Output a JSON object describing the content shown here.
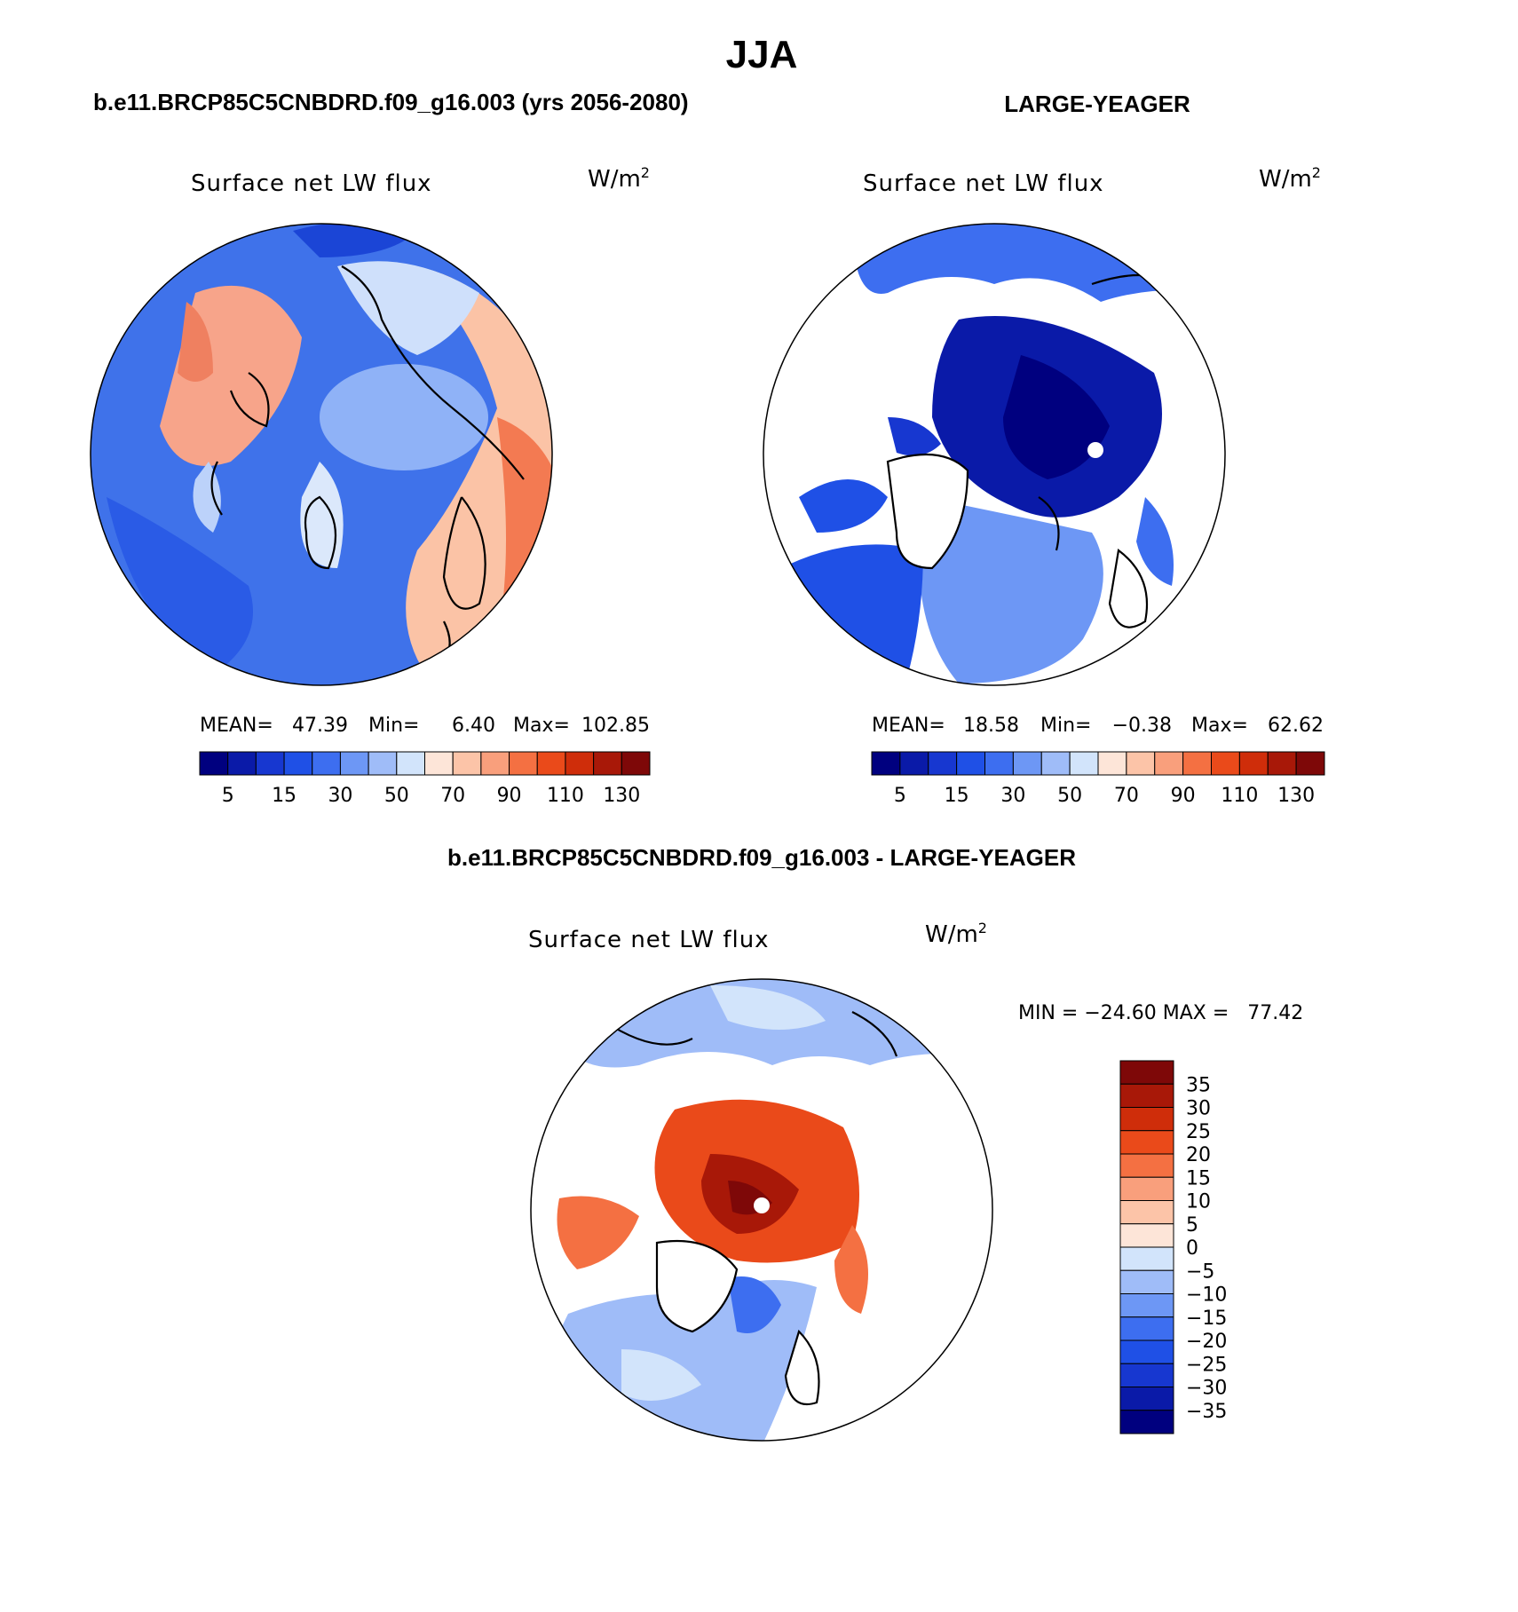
{
  "title": "JJA",
  "panel_left": {
    "case_title": "b.e11.BRCP85C5CNBDRD.f09_g16.003 (yrs 2056-2080)",
    "variable": "Surface net LW flux",
    "units": "W/m",
    "units_sup": "2",
    "stats": {
      "mean_label": "MEAN=",
      "mean": "47.39",
      "min_label": "Min=",
      "min": "6.40",
      "max_label": "Max=",
      "max": "102.85"
    }
  },
  "panel_right": {
    "case_title": "LARGE-YEAGER",
    "variable": "Surface net LW flux",
    "units": "W/m",
    "units_sup": "2",
    "stats": {
      "mean_label": "MEAN=",
      "mean": "18.58",
      "min_label": "Min=",
      "min": "−0.38",
      "max_label": "Max=",
      "max": "62.62"
    }
  },
  "panel_diff": {
    "case_title": "b.e11.BRCP85C5CNBDRD.f09_g16.003 - LARGE-YEAGER",
    "variable": "Surface net LW flux",
    "units": "W/m",
    "units_sup": "2",
    "minmax": "MIN = −24.60 MAX =   77.42"
  },
  "colorbar_abs": {
    "colors": [
      "#00007f",
      "#0a1aa8",
      "#1737d0",
      "#1f50e6",
      "#3d6ef0",
      "#6d97f5",
      "#9fbcf8",
      "#d2e4fb",
      "#fde5d8",
      "#fcc4a8",
      "#f99f7c",
      "#f47042",
      "#ea4a1a",
      "#cf2d0a",
      "#a81808",
      "#7e0808"
    ],
    "tick_labels": [
      "5",
      "15",
      "30",
      "50",
      "70",
      "90",
      "110",
      "130"
    ]
  },
  "colorbar_diff": {
    "colors": [
      "#00007f",
      "#0a1aa8",
      "#1737d0",
      "#1f50e6",
      "#3d6ef0",
      "#6d97f5",
      "#9fbcf8",
      "#d2e4fb",
      "#fde5d8",
      "#fcc4a8",
      "#f99f7c",
      "#f47042",
      "#ea4a1a",
      "#cf2d0a",
      "#a81808",
      "#7e0808"
    ],
    "tick_labels": [
      "35",
      "30",
      "25",
      "20",
      "15",
      "10",
      "5",
      "0",
      "−5",
      "−10",
      "−15",
      "−20",
      "−25",
      "−30",
      "−35"
    ]
  }
}
